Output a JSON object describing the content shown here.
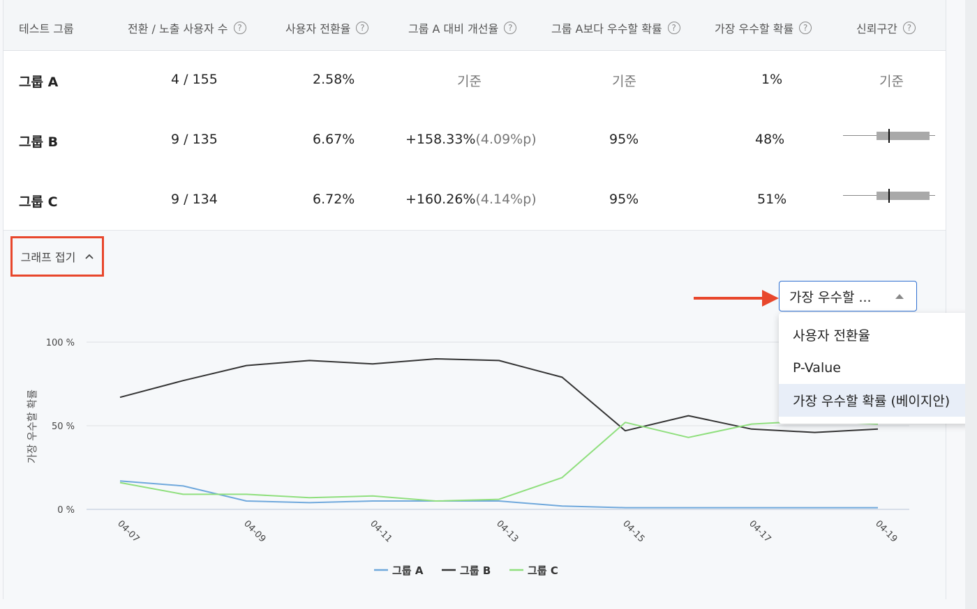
{
  "columns": [
    {
      "label": "테스트 그룹",
      "help": false
    },
    {
      "label": "전환 / 노출 사용자 수",
      "help": true
    },
    {
      "label": "사용자 전환율",
      "help": true
    },
    {
      "label": "그룹 A 대비 개선율",
      "help": true
    },
    {
      "label": "그룹 A보다 우수할 확률",
      "help": true
    },
    {
      "label": "가장 우수할 확률",
      "help": true
    },
    {
      "label": "신뢰구간",
      "help": true
    }
  ],
  "help_glyph": "?",
  "rows": [
    {
      "name": "그룹 A",
      "conv": "4 / 155",
      "rate": "2.58%",
      "improve": "기준",
      "improve_pp": "",
      "beat_a": "기준",
      "best": "1%",
      "ci": "기준"
    },
    {
      "name": "그룹 B",
      "conv": "9 / 135",
      "rate": "6.67%",
      "improve": "+158.33%",
      "improve_pp": "(4.09%p)",
      "beat_a": "95%",
      "best": "48%",
      "ci_interval": [
        0.36,
        0.94
      ],
      "ci_point": 0.5
    },
    {
      "name": "그룹 C",
      "conv": "9 / 134",
      "rate": "6.72%",
      "improve": "+160.26%",
      "improve_pp": "(4.14%p)",
      "beat_a": "95%",
      "best": "51%",
      "ci_interval": [
        0.36,
        0.94
      ],
      "ci_point": 0.5
    }
  ],
  "toggle": {
    "label": "그래프 접기",
    "icon": "chevron-up-icon"
  },
  "metric_select": {
    "value": "가장 우수할 ...",
    "options": [
      "사용자 전환율",
      "P-Value",
      "가장 우수할 확률 (베이지안)"
    ],
    "selected_index": 2
  },
  "annotation_color": "#e8472c",
  "chart_data": {
    "type": "line",
    "ylabel": "가장 우수할 확률",
    "ylim": [
      0,
      100
    ],
    "yticks": [
      "0 %",
      "50 %",
      "100 %"
    ],
    "x": [
      "04-07",
      "04-08",
      "04-09",
      "04-10",
      "04-11",
      "04-12",
      "04-13",
      "04-14",
      "04-15",
      "04-16",
      "04-17",
      "04-18",
      "04-19"
    ],
    "xtick_labels": [
      "04-07",
      "04-09",
      "04-11",
      "04-13",
      "04-15",
      "04-17",
      "04-19"
    ],
    "legend": "bottom",
    "series": [
      {
        "name": "그룹 A",
        "color": "#6fa8dc",
        "values": [
          17,
          14,
          5,
          4,
          5,
          5,
          5,
          2,
          1,
          1,
          1,
          1,
          1
        ]
      },
      {
        "name": "그룹 B",
        "color": "#333333",
        "values": [
          67,
          77,
          86,
          89,
          87,
          90,
          89,
          79,
          47,
          56,
          48,
          46,
          48
        ]
      },
      {
        "name": "그룹 C",
        "color": "#8fdf7d",
        "values": [
          16,
          9,
          9,
          7,
          8,
          5,
          6,
          19,
          52,
          43,
          51,
          53,
          51
        ]
      }
    ]
  }
}
